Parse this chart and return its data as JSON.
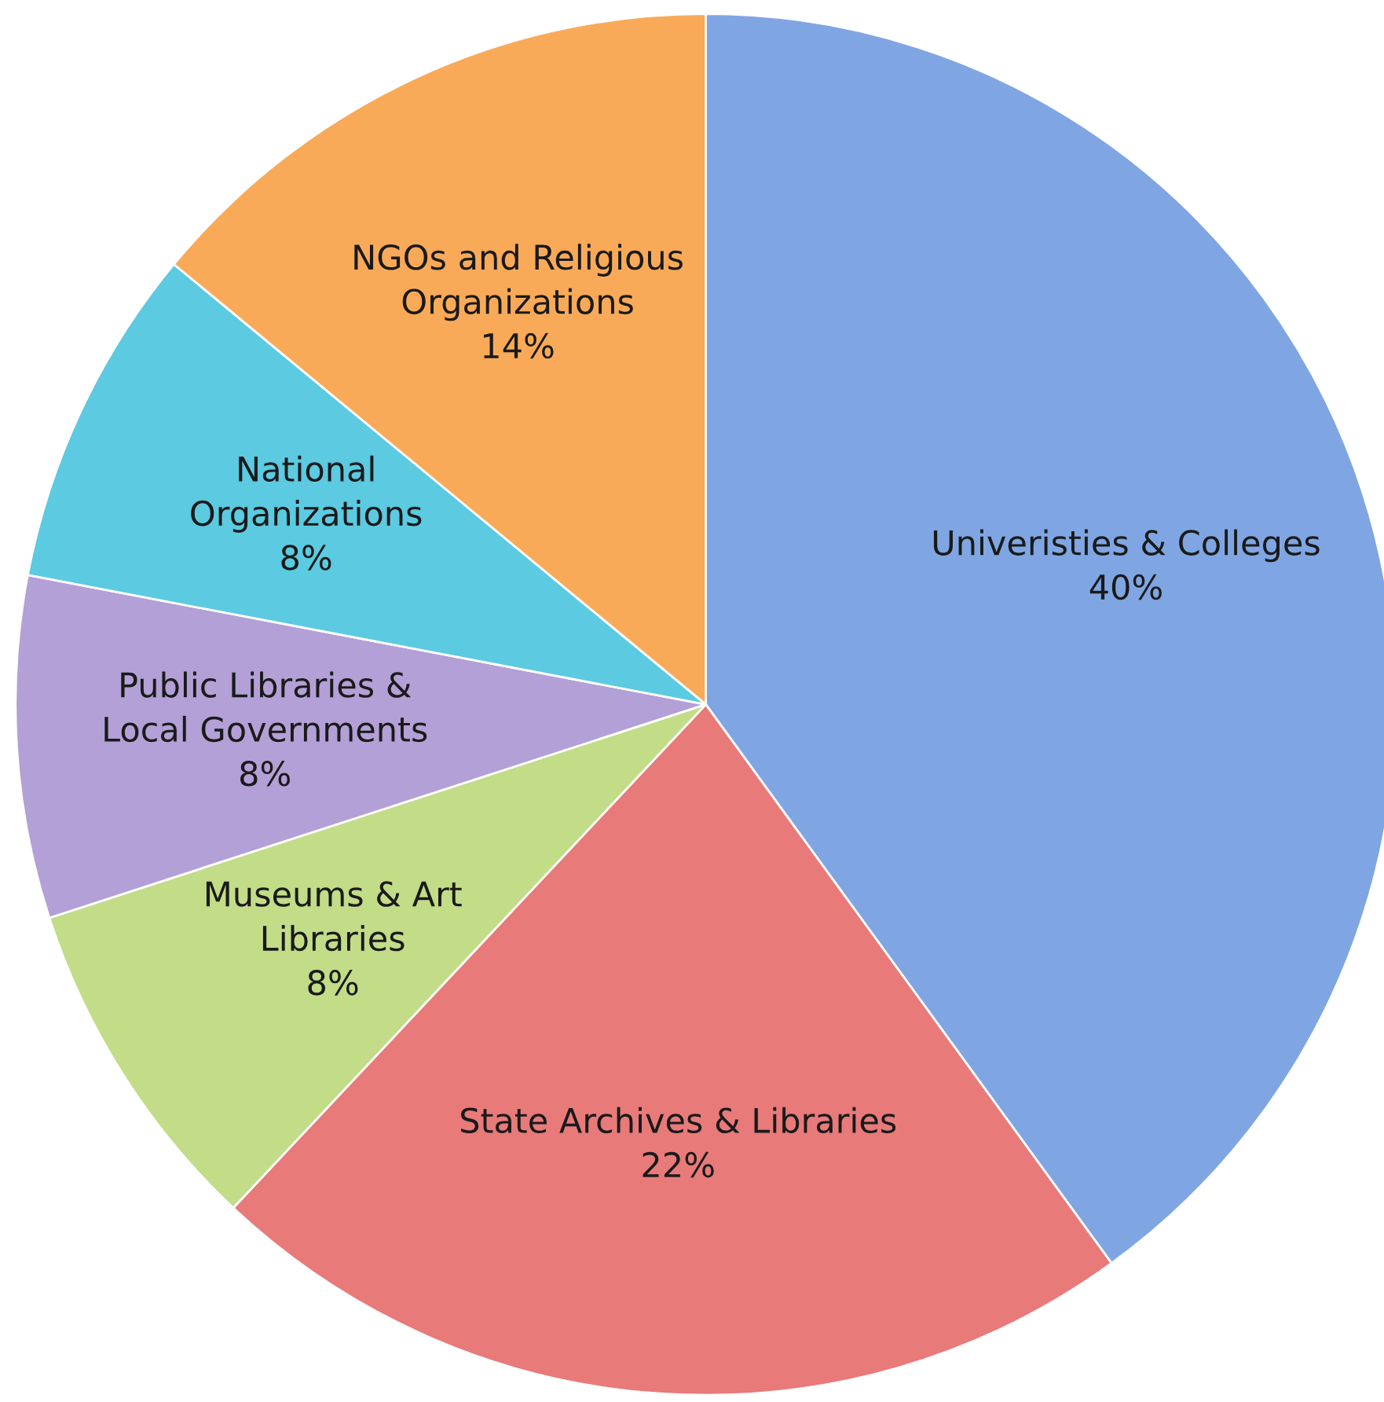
{
  "chart_data": {
    "type": "pie",
    "categories": [
      "Univeristies & Colleges",
      "State Archives & Libraries",
      "Museums & Art\nLibraries",
      "Public Libraries &\nLocal Governments",
      "National\nOrganizations",
      "NGOs and Religious\nOrganizations"
    ],
    "values": [
      40,
      22,
      8,
      8,
      8,
      14
    ],
    "colors": [
      "#7fa6e2",
      "#e87a7a",
      "#c2dc88",
      "#b3a0d6",
      "#5ccae0",
      "#f9aa58"
    ],
    "value_labels": [
      "40%",
      "22%",
      "8%",
      "8%",
      "8%",
      "14%"
    ]
  }
}
